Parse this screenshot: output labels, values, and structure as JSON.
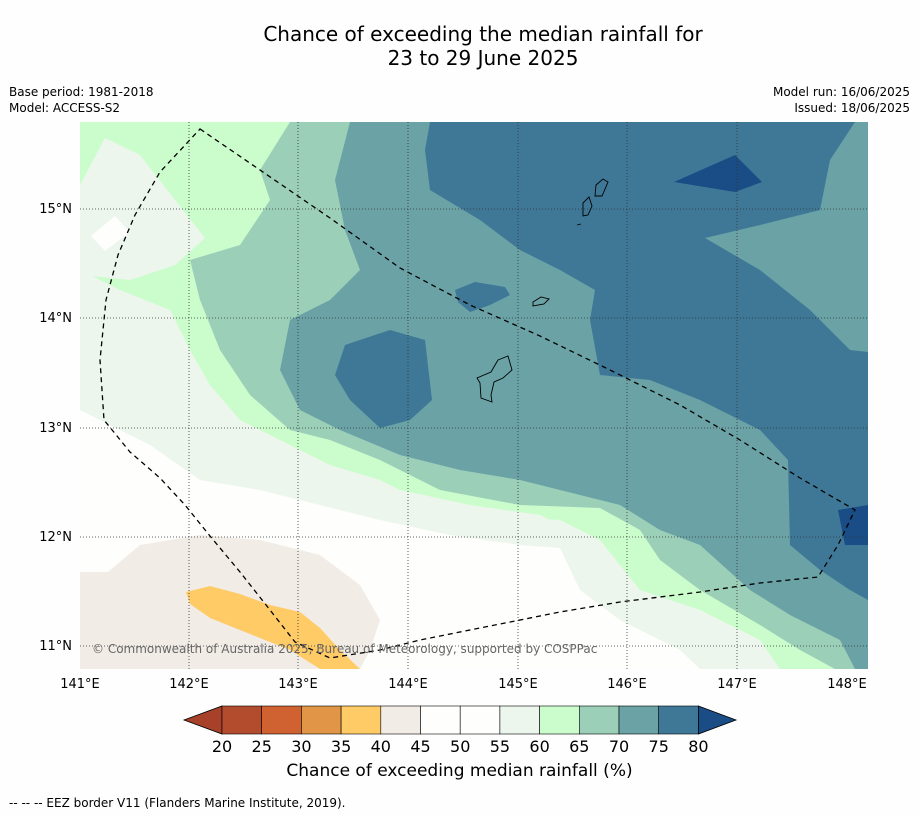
{
  "title_line1": "Chance of exceeding the median rainfall for",
  "title_line2": "23 to 29 June 2025",
  "meta": {
    "base_period": "Base period: 1981-2018",
    "model": "Model: ACCESS-S2",
    "model_run": "Model run: 16/06/2025",
    "issued": "Issued: 18/06/2025"
  },
  "map": {
    "lon_labels": [
      "141°E",
      "142°E",
      "143°E",
      "144°E",
      "145°E",
      "146°E",
      "147°E",
      "148°E"
    ],
    "lat_labels": [
      "15°N",
      "14°N",
      "13°N",
      "12°N",
      "11°N"
    ],
    "copyright": "© Commonwealth of Australia 2025, Bureau of Meteorology, supported by COSPPac"
  },
  "colorbar": {
    "ticks": [
      "20",
      "25",
      "30",
      "35",
      "40",
      "45",
      "50",
      "55",
      "60",
      "65",
      "70",
      "75",
      "80"
    ],
    "colors": [
      "#a8412a",
      "#b34b2d",
      "#cf6230",
      "#e19546",
      "#fecb66",
      "#f2ece6",
      "#fefefc",
      "#fefefc",
      "#ecf6ec",
      "#cbfdcc",
      "#9ccfb8",
      "#6aa2a6",
      "#3f7897",
      "#1a4c86"
    ],
    "title": "Chance of exceeding median rainfall (%)"
  },
  "footer": "--  --  -- EEZ border V11 (Flanders Marine Institute, 2019)."
}
